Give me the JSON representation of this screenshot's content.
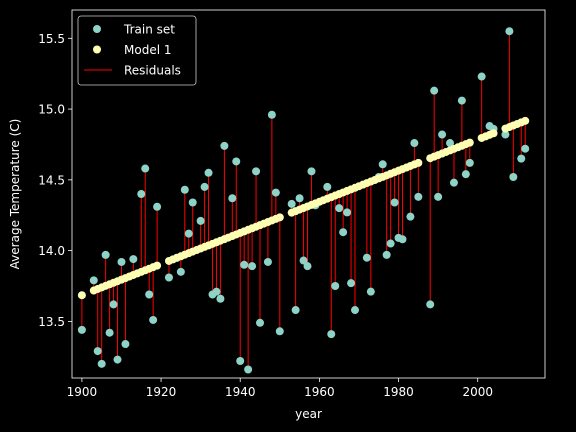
{
  "chart_data": {
    "type": "scatter",
    "title": "",
    "xlabel": "year",
    "ylabel": "Average Temperature (C)",
    "xlim": [
      1897.5,
      2017
    ],
    "ylim": [
      13.1,
      15.7
    ],
    "xticks": [
      1900,
      1920,
      1940,
      1960,
      1980,
      2000
    ],
    "yticks": [
      13.5,
      14.0,
      14.5,
      15.0,
      15.5
    ],
    "grid": false,
    "legend_position": "top-left",
    "legend": [
      "Train set",
      "Model 1",
      "Residuals"
    ],
    "colors": {
      "background": "#000000",
      "train": "#8dd3c7",
      "model": "#ffffb3",
      "residual": "#ff0000",
      "foreground": "#ffffff"
    },
    "series": [
      {
        "name": "Train set",
        "x": [
          1900,
          1903,
          1904,
          1905,
          1906,
          1907,
          1908,
          1909,
          1910,
          1911,
          1913,
          1915,
          1916,
          1917,
          1918,
          1919,
          1922,
          1924,
          1925,
          1926,
          1927,
          1928,
          1930,
          1931,
          1932,
          1933,
          1934,
          1935,
          1936,
          1938,
          1939,
          1940,
          1941,
          1942,
          1943,
          1944,
          1945,
          1947,
          1948,
          1949,
          1950,
          1953,
          1954,
          1955,
          1956,
          1957,
          1958,
          1959,
          1962,
          1963,
          1964,
          1965,
          1966,
          1967,
          1968,
          1969,
          1972,
          1973,
          1975,
          1976,
          1977,
          1978,
          1979,
          1980,
          1981,
          1983,
          1984,
          1985,
          1988,
          1989,
          1990,
          1991,
          1993,
          1994,
          1996,
          1997,
          1998,
          2001,
          2003,
          2004,
          2007,
          2008,
          2009,
          2011,
          2012
        ],
        "y": [
          13.44,
          13.79,
          13.29,
          13.2,
          13.97,
          13.42,
          13.62,
          13.23,
          13.92,
          13.34,
          13.94,
          14.4,
          14.58,
          13.69,
          13.51,
          14.31,
          13.81,
          13.95,
          13.85,
          14.43,
          14.12,
          14.34,
          14.21,
          14.45,
          14.55,
          13.69,
          13.71,
          13.66,
          14.74,
          14.37,
          14.63,
          13.22,
          13.9,
          13.16,
          13.89,
          14.56,
          13.49,
          13.92,
          14.96,
          14.41,
          13.43,
          14.33,
          13.58,
          14.37,
          13.93,
          13.89,
          14.56,
          14.32,
          14.45,
          13.41,
          13.75,
          14.3,
          14.13,
          14.27,
          13.77,
          13.58,
          13.95,
          13.71,
          14.52,
          14.61,
          13.97,
          14.05,
          14.34,
          14.09,
          14.08,
          14.24,
          14.76,
          14.38,
          13.62,
          15.13,
          14.38,
          14.82,
          14.76,
          14.48,
          15.06,
          14.54,
          14.62,
          15.23,
          14.88,
          14.86,
          14.82,
          15.55,
          14.52,
          14.65,
          14.72
        ]
      },
      {
        "name": "Model 1",
        "x": [
          1900,
          1903,
          1904,
          1905,
          1906,
          1907,
          1908,
          1909,
          1910,
          1911,
          1912,
          1913,
          1914,
          1915,
          1916,
          1917,
          1918,
          1919,
          1922,
          1923,
          1924,
          1925,
          1926,
          1927,
          1928,
          1929,
          1930,
          1931,
          1932,
          1933,
          1934,
          1935,
          1936,
          1937,
          1938,
          1939,
          1940,
          1941,
          1942,
          1943,
          1944,
          1945,
          1946,
          1947,
          1948,
          1949,
          1950,
          1953,
          1954,
          1955,
          1956,
          1957,
          1958,
          1959,
          1960,
          1961,
          1962,
          1963,
          1964,
          1965,
          1966,
          1967,
          1968,
          1969,
          1970,
          1971,
          1972,
          1973,
          1974,
          1975,
          1976,
          1977,
          1978,
          1979,
          1980,
          1981,
          1982,
          1983,
          1984,
          1985,
          1988,
          1989,
          1990,
          1991,
          1992,
          1993,
          1994,
          1995,
          1996,
          1997,
          1998,
          2001,
          2002,
          2003,
          2004,
          2007,
          2008,
          2009,
          2010,
          2011,
          2012
        ],
        "y": [
          13.685,
          13.718,
          13.729,
          13.74,
          13.751,
          13.762,
          13.773,
          13.784,
          13.795,
          13.806,
          13.817,
          13.828,
          13.839,
          13.85,
          13.861,
          13.872,
          13.883,
          13.894,
          13.927,
          13.938,
          13.949,
          13.96,
          13.971,
          13.982,
          13.993,
          14.004,
          14.015,
          14.026,
          14.037,
          14.048,
          14.059,
          14.07,
          14.081,
          14.092,
          14.103,
          14.114,
          14.125,
          14.136,
          14.147,
          14.158,
          14.169,
          14.18,
          14.191,
          14.202,
          14.213,
          14.224,
          14.235,
          14.268,
          14.279,
          14.29,
          14.301,
          14.312,
          14.323,
          14.334,
          14.345,
          14.356,
          14.367,
          14.378,
          14.389,
          14.4,
          14.411,
          14.422,
          14.433,
          14.444,
          14.455,
          14.466,
          14.477,
          14.488,
          14.499,
          14.51,
          14.521,
          14.532,
          14.543,
          14.554,
          14.565,
          14.576,
          14.587,
          14.598,
          14.609,
          14.62,
          14.653,
          14.664,
          14.675,
          14.686,
          14.697,
          14.708,
          14.719,
          14.73,
          14.741,
          14.752,
          14.763,
          14.796,
          14.807,
          14.818,
          14.829,
          14.862,
          14.873,
          14.884,
          14.895,
          14.906,
          14.917
        ]
      }
    ]
  }
}
